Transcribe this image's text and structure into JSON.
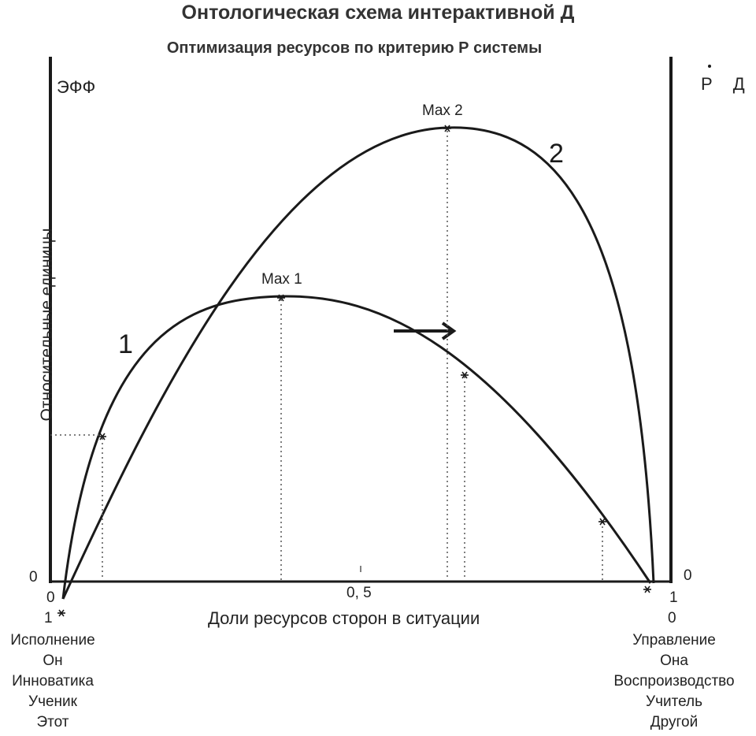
{
  "title": "Онтологическая схема интерактивной Д",
  "subtitle": "Оптимизация ресурсов по критерию Р системы",
  "left_axis_label": "ЭФФ",
  "right_axis_label": "Р Д",
  "y_axis_label": "Относительные единицы",
  "x_axis_label": "Доли ресурсов сторон в ситуации",
  "x_ticks": {
    "left_zero": "0",
    "mid": "0, 5",
    "right_one": "1"
  },
  "y_zero_left": "0",
  "y_zero_right": "0",
  "left_end": {
    "value": "1",
    "lines": [
      "Исполнение",
      "Он",
      "Инноватика",
      "Ученик",
      "Этот"
    ]
  },
  "right_end": {
    "value": "0",
    "lines": [
      "Управление",
      "Она",
      "Воспроизводство",
      "Учитель",
      "Другой"
    ]
  },
  "curves": [
    {
      "label": "1",
      "max_label": "Max 1"
    },
    {
      "label": "2",
      "max_label": "Max 2"
    }
  ],
  "colors": {
    "ink": "#1a1a1a",
    "dotted": "#555555"
  }
}
